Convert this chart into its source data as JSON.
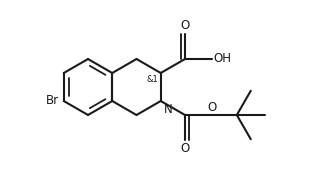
{
  "bg_color": "#ffffff",
  "line_color": "#1a1a1a",
  "lw": 1.5,
  "figsize": [
    3.29,
    1.78
  ],
  "dpi": 100,
  "stereo_text": "&1",
  "labels": {
    "O_cooh": "O",
    "OH": "OH",
    "N": "N",
    "O_boc_co": "O",
    "O_boc_ether": "O",
    "Br": "Br"
  }
}
